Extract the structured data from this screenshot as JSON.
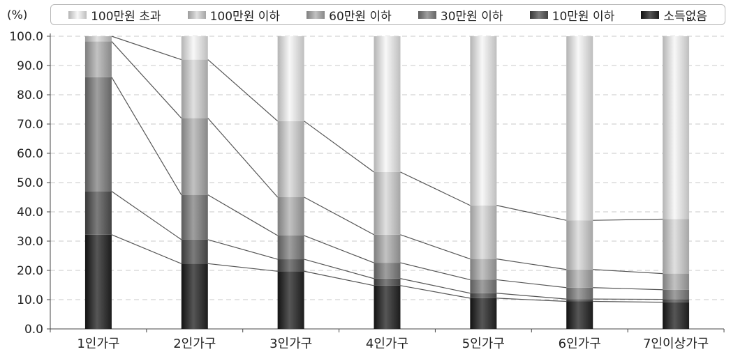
{
  "chart_data": {
    "type": "bar",
    "stacked": true,
    "unit_label": "(%)",
    "categories": [
      "1인가구",
      "2인가구",
      "3인가구",
      "4인가구",
      "5인가구",
      "6인가구",
      "7인이상가구"
    ],
    "y_ticks": [
      "0.0",
      "10.0",
      "20.0",
      "30.0",
      "40.0",
      "50.0",
      "60.0",
      "70.0",
      "80.0",
      "90.0",
      "100.0"
    ],
    "ylim": [
      0,
      100
    ],
    "grid": true,
    "legend_position": "top",
    "cumulative_boundaries": [
      [
        32.2,
        47.0,
        86.0,
        98.2,
        100
      ],
      [
        22.3,
        30.5,
        45.8,
        72.0,
        92.0
      ],
      [
        19.7,
        23.8,
        31.9,
        45.0,
        71.0
      ],
      [
        14.8,
        17.2,
        22.6,
        32.2,
        53.6
      ],
      [
        10.5,
        12.2,
        16.8,
        23.9,
        42.2
      ],
      [
        9.4,
        10.2,
        14.1,
        20.3,
        37.1
      ],
      [
        9.1,
        10.1,
        13.4,
        18.9,
        37.5
      ]
    ],
    "series": [
      {
        "name": "소득없음",
        "values": [
          32.2,
          22.3,
          19.7,
          14.8,
          10.5,
          9.4,
          9.1
        ],
        "color": "#3a3a3a"
      },
      {
        "name": "10만원 이하",
        "values": [
          14.8,
          8.2,
          4.1,
          2.4,
          1.7,
          0.8,
          1.0
        ],
        "color": "#606060"
      },
      {
        "name": "30만원 이하",
        "values": [
          39.0,
          15.3,
          8.1,
          5.4,
          4.6,
          3.9,
          3.3
        ],
        "color": "#838383"
      },
      {
        "name": "60만원 이하",
        "values": [
          12.2,
          26.2,
          13.1,
          9.6,
          7.1,
          6.2,
          5.5
        ],
        "color": "#a6a6a6"
      },
      {
        "name": "100만원 이하",
        "values": [
          1.8,
          20.0,
          26.0,
          21.4,
          18.3,
          16.8,
          18.6
        ],
        "color": "#c4c4c4"
      },
      {
        "name": "100만원 초과",
        "values": [
          0.0,
          8.0,
          29.0,
          46.4,
          57.8,
          62.9,
          62.5
        ],
        "color": "#dcdcdc"
      }
    ]
  },
  "legend": {
    "items": [
      {
        "label": "100만원 초과",
        "color": "#dcdcdc"
      },
      {
        "label": "100만원 이하",
        "color": "#c4c4c4"
      },
      {
        "label": "60만원 이하",
        "color": "#a6a6a6"
      },
      {
        "label": "30만원 이하",
        "color": "#838383"
      },
      {
        "label": "10만원 이하",
        "color": "#606060"
      },
      {
        "label": "소득없음",
        "color": "#3a3a3a"
      }
    ]
  }
}
